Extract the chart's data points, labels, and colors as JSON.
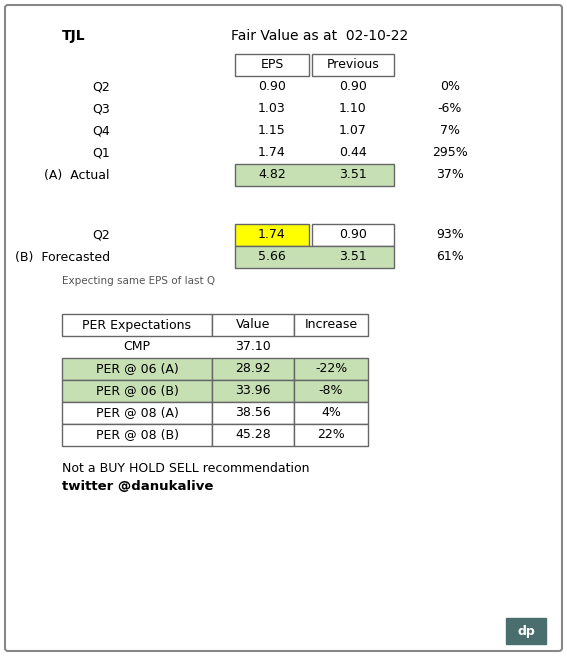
{
  "title_left": "TJL",
  "title_right": "Fair Value as at  02-10-22",
  "col_headers": [
    "EPS",
    "Previous"
  ],
  "q_rows": [
    {
      "label": "Q2",
      "eps": "0.90",
      "prev": "0.90",
      "pct": "0%"
    },
    {
      "label": "Q3",
      "eps": "1.03",
      "prev": "1.10",
      "pct": "-6%"
    },
    {
      "label": "Q4",
      "eps": "1.15",
      "prev": "1.07",
      "pct": "7%"
    },
    {
      "label": "Q1",
      "eps": "1.74",
      "prev": "0.44",
      "pct": "295%"
    }
  ],
  "actual_row": {
    "label": "(A)  Actual",
    "eps": "4.82",
    "prev": "3.51",
    "pct": "37%"
  },
  "forecast_q2": {
    "label": "Q2",
    "eps": "1.74",
    "prev": "0.90",
    "pct": "93%"
  },
  "forecast_row": {
    "label": "(B)  Forecasted",
    "eps": "5.66",
    "prev": "3.51",
    "pct": "61%"
  },
  "forecast_note": "Expecting same EPS of last Q",
  "per_headers": [
    "PER Expectations",
    "Value",
    "Increase"
  ],
  "cmp_row": {
    "label": "CMP",
    "value": "37.10",
    "increase": ""
  },
  "per_rows": [
    {
      "label": "PER @ 06 (A)",
      "value": "28.92",
      "increase": "-22%",
      "bg": "#c6e0b4"
    },
    {
      "label": "PER @ 06 (B)",
      "value": "33.96",
      "increase": "-8%",
      "bg": "#c6e0b4"
    },
    {
      "label": "PER @ 08 (A)",
      "value": "38.56",
      "increase": "4%",
      "bg": "#ffffff"
    },
    {
      "label": "PER @ 08 (B)",
      "value": "45.28",
      "increase": "22%",
      "bg": "#ffffff"
    }
  ],
  "footer1": "Not a BUY HOLD SELL recommendation",
  "footer2": "twitter @danukalive",
  "bg_color": "#ffffff",
  "outer_border_color": "#888888",
  "table_border_color": "#666666",
  "green_bg": "#c6e0b4",
  "yellow_bg": "#ffff00",
  "dp_bg": "#4a6e6e",
  "dp_text": "dp"
}
